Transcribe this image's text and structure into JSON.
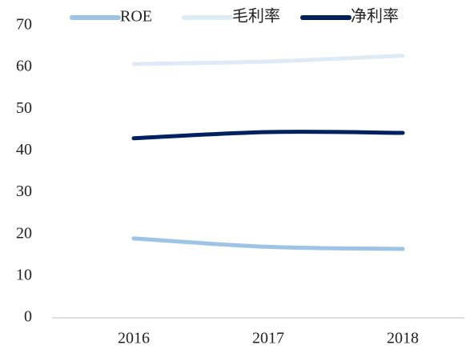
{
  "chart_data": {
    "type": "line",
    "categories": [
      "2016",
      "2017",
      "2018"
    ],
    "series": [
      {
        "name": "ROE",
        "color": "#9dc3e6",
        "values": [
          19,
          17,
          16.5
        ]
      },
      {
        "name": "毛利率",
        "color": "#deebf7",
        "values": [
          60.8,
          61.4,
          62.8
        ]
      },
      {
        "name": "净利率",
        "color": "#002060",
        "values": [
          43,
          44.5,
          44.3
        ]
      }
    ],
    "ylim": [
      0,
      70
    ],
    "yticks": [
      0,
      10,
      20,
      30,
      40,
      50,
      60,
      70
    ],
    "grid": false,
    "legend": "top",
    "smooth": true
  }
}
